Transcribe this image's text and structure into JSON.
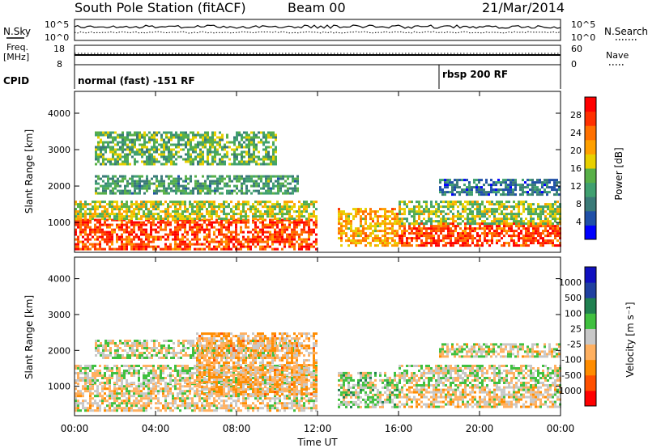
{
  "header": {
    "station": "South Pole Station (fitACF)",
    "beam": "Beam 00",
    "date": "21/Mar/2014"
  },
  "summary": {
    "nsky_label": "N.Sky",
    "nsearch_label": "N.Search",
    "noise_ticks": [
      "10^5",
      "10^0"
    ],
    "freq_label": "Freq.",
    "freq_unit": "[MHz]",
    "freq_ticks": [
      "18",
      "8"
    ],
    "nave_label": "Nave",
    "nave_ticks": [
      "60",
      "0"
    ],
    "cpid_label": "CPID",
    "cpid_segments": [
      {
        "label": "normal (fast) -151 RF",
        "start_hour": 0
      },
      {
        "label": "rbsp 200 RF",
        "start_hour": 18
      }
    ]
  },
  "colors": {
    "power_scale": [
      "#0000ff",
      "#2050a8",
      "#3a7a78",
      "#40a070",
      "#58b048",
      "#e8d000",
      "#ffa000",
      "#ff7000",
      "#ff3000",
      "#ff0000"
    ],
    "velocity_scale": [
      "#ff0000",
      "#ff5000",
      "#ff8c00",
      "#ffb060",
      "#c8c8c8",
      "#40c040",
      "#208050",
      "#2040a0",
      "#1010c0"
    ]
  },
  "chart_data": [
    {
      "type": "heatmap",
      "title": "Power",
      "xlabel": "Time UT",
      "ylabel": "Slant Range [km]",
      "xlim": [
        0,
        24
      ],
      "ylim": [
        180,
        4600
      ],
      "x_ticks": [
        "00:00",
        "04:00",
        "08:00",
        "12:00",
        "16:00",
        "20:00",
        "00:00"
      ],
      "y_ticks": [
        1000,
        2000,
        3000,
        4000
      ],
      "colorbar": {
        "label": "Power [dB]",
        "ticks": [
          "28",
          "24",
          "20",
          "16",
          "12",
          "8",
          "4"
        ]
      },
      "bands": [
        {
          "t0": 0,
          "t1": 12,
          "r0": 300,
          "r1": 1100,
          "value": 26
        },
        {
          "t0": 0,
          "t1": 12,
          "r0": 1100,
          "r1": 1600,
          "value": 16
        },
        {
          "t0": 1,
          "t1": 11,
          "r0": 1800,
          "r1": 2300,
          "value": 10
        },
        {
          "t0": 1,
          "t1": 10,
          "r0": 2600,
          "r1": 3500,
          "value": 12
        },
        {
          "t0": 13,
          "t1": 16,
          "r0": 400,
          "r1": 1400,
          "value": 20
        },
        {
          "t0": 16,
          "t1": 24,
          "r0": 400,
          "r1": 1000,
          "value": 26
        },
        {
          "t0": 16,
          "t1": 24,
          "r0": 1000,
          "r1": 1600,
          "value": 14
        },
        {
          "t0": 18,
          "t1": 24,
          "r0": 1800,
          "r1": 2200,
          "value": 6
        }
      ]
    },
    {
      "type": "heatmap",
      "title": "Velocity",
      "xlabel": "Time UT",
      "ylabel": "Slant Range [km]",
      "xlim": [
        0,
        24
      ],
      "ylim": [
        180,
        4600
      ],
      "x_ticks": [
        "00:00",
        "04:00",
        "08:00",
        "12:00",
        "16:00",
        "20:00",
        "00:00"
      ],
      "y_ticks": [
        1000,
        2000,
        3000,
        4000
      ],
      "colorbar": {
        "label": "Velocity [m s⁻¹]",
        "ticks": [
          "1000",
          "500",
          "100",
          "25",
          "-25",
          "-100",
          "-500",
          "-1000"
        ]
      },
      "bands": [
        {
          "t0": 0,
          "t1": 12,
          "r0": 300,
          "r1": 1100,
          "value": -100
        },
        {
          "t0": 0,
          "t1": 12,
          "r0": 1100,
          "r1": 1600,
          "value": 0
        },
        {
          "t0": 1,
          "t1": 11,
          "r0": 1800,
          "r1": 2300,
          "value": 0
        },
        {
          "t0": 6,
          "t1": 12,
          "r0": 800,
          "r1": 2500,
          "value": -300
        },
        {
          "t0": 13,
          "t1": 16,
          "r0": 400,
          "r1": 1400,
          "value": 100
        },
        {
          "t0": 16,
          "t1": 24,
          "r0": 400,
          "r1": 1000,
          "value": -150
        },
        {
          "t0": 16,
          "t1": 24,
          "r0": 1000,
          "r1": 1600,
          "value": 0
        },
        {
          "t0": 18,
          "t1": 24,
          "r0": 1800,
          "r1": 2200,
          "value": -50
        }
      ]
    }
  ]
}
